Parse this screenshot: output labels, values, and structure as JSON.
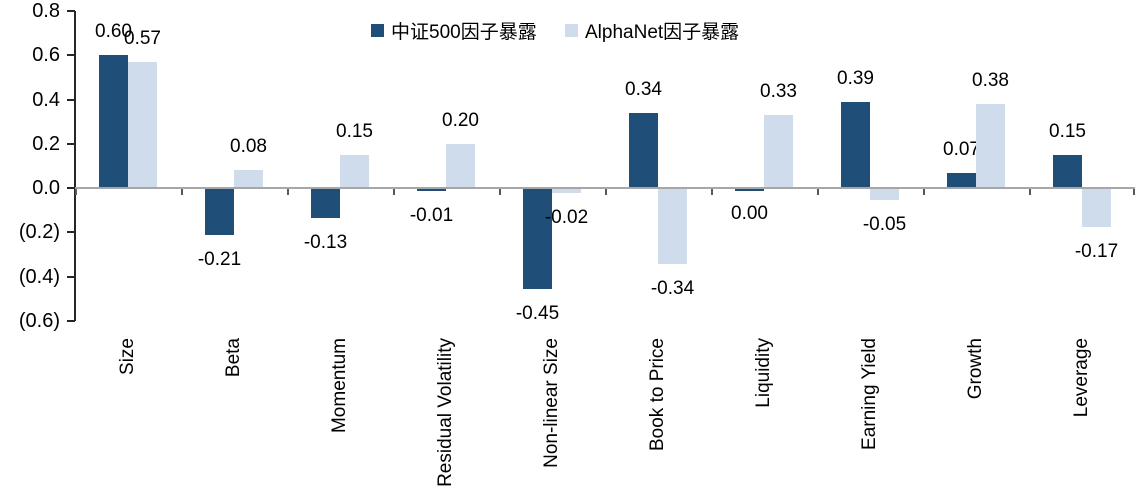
{
  "chart_data": {
    "type": "bar",
    "title": "",
    "xlabel": "",
    "ylabel": "",
    "ylim": [
      -0.6,
      0.8
    ],
    "grid": false,
    "legend_position": "top",
    "categories": [
      "Size",
      "Beta",
      "Momentum",
      "Residual Volatility",
      "Non-linear Size",
      "Book to Price",
      "Liquidity",
      "Earning Yield",
      "Growth",
      "Leverage"
    ],
    "series": [
      {
        "name": "中证500因子暴露",
        "color": "#1F4E79",
        "values": [
          0.6,
          -0.21,
          -0.13,
          -0.01,
          -0.45,
          0.34,
          0.0,
          0.39,
          0.07,
          0.15
        ],
        "labels": [
          "0.60",
          "-0.21",
          "-0.13",
          "-0.01",
          "-0.45",
          "0.34",
          "0.00",
          "0.39",
          "0.07",
          "0.15"
        ]
      },
      {
        "name": "AlphaNet因子暴露",
        "color": "#CFDCEB",
        "values": [
          0.57,
          0.08,
          0.15,
          0.2,
          -0.02,
          -0.34,
          0.33,
          -0.05,
          0.38,
          -0.17
        ],
        "labels": [
          "0.57",
          "0.08",
          "0.15",
          "0.20",
          "-0.02",
          "-0.34",
          "0.33",
          "-0.05",
          "0.38",
          "-0.17"
        ]
      }
    ],
    "y_ticks": [
      {
        "value": 0.8,
        "label": "0.8"
      },
      {
        "value": 0.6,
        "label": "0.6"
      },
      {
        "value": 0.4,
        "label": "0.4"
      },
      {
        "value": 0.2,
        "label": "0.2"
      },
      {
        "value": 0.0,
        "label": "0.0"
      },
      {
        "value": -0.2,
        "label": "(0.2)"
      },
      {
        "value": -0.4,
        "label": "(0.4)"
      },
      {
        "value": -0.6,
        "label": "(0.6)"
      }
    ],
    "axis_colors": {
      "zero_line": "#A6A6A6",
      "y_axis": "#262626",
      "x_tick": "#595959",
      "text": "#000000"
    }
  }
}
